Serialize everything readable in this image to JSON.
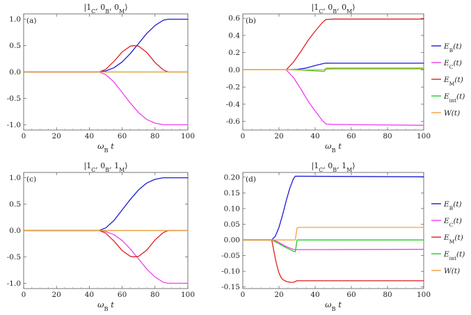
{
  "figure": {
    "description_labels": [
      "(a)",
      "(b)",
      "(c)",
      "(d)"
    ]
  },
  "colors": {
    "E_B": "#1a1ad6",
    "E_C": "#ee3ef0",
    "E_M": "#e02020",
    "E_int": "#22cc22",
    "W": "#f5a040"
  },
  "legend": {
    "entries": [
      {
        "key": "E_B",
        "label": "E_B(t)"
      },
      {
        "key": "E_C",
        "label": "E_C(t)"
      },
      {
        "key": "E_M",
        "label": "E_M(t)"
      },
      {
        "key": "E_int",
        "label": "E_int(t)"
      },
      {
        "key": "W",
        "label": "W(t)"
      }
    ]
  },
  "chart_data": [
    {
      "type": "line",
      "panel": "a",
      "tag": "(a)",
      "title": "|1_C, 0_B, 0_M⟩",
      "xlabel": "ω_B t",
      "ylabel": "",
      "xlim": [
        0,
        100
      ],
      "ylim": [
        -1.1,
        1.1
      ],
      "xticks": [
        0,
        20,
        40,
        60,
        80,
        100
      ],
      "yticks": [
        -1.0,
        -0.5,
        0.0,
        0.5,
        1.0
      ],
      "ytick_labels": [
        "-1.0",
        "-0.5",
        "0.0",
        "0.5",
        "1.0"
      ],
      "series": [
        {
          "name": "E_B(t)",
          "key": "E_B",
          "x": [
            0,
            46,
            50,
            55,
            60,
            65,
            70,
            75,
            80,
            85,
            88,
            90,
            100
          ],
          "y": [
            0,
            0,
            0.02,
            0.08,
            0.19,
            0.35,
            0.54,
            0.73,
            0.88,
            0.98,
            1.0,
            1.0,
            1.0
          ]
        },
        {
          "name": "E_C(t)",
          "key": "E_C",
          "x": [
            0,
            46,
            50,
            55,
            60,
            65,
            70,
            75,
            80,
            85,
            88,
            90,
            100
          ],
          "y": [
            0,
            0,
            -0.05,
            -0.19,
            -0.39,
            -0.59,
            -0.77,
            -0.9,
            -0.97,
            -1.0,
            -1.0,
            -1.0,
            -1.0
          ]
        },
        {
          "name": "E_M(t)",
          "key": "E_M",
          "x": [
            0,
            46,
            50,
            55,
            60,
            65,
            67,
            70,
            75,
            80,
            85,
            88,
            100
          ],
          "y": [
            0,
            0,
            0.05,
            0.2,
            0.38,
            0.49,
            0.5,
            0.49,
            0.37,
            0.18,
            0.04,
            0,
            0
          ]
        },
        {
          "name": "E_int(t)",
          "key": "E_int",
          "x": [
            0,
            100
          ],
          "y": [
            0,
            0
          ]
        },
        {
          "name": "W(t)",
          "key": "W",
          "x": [
            0,
            100
          ],
          "y": [
            0,
            0
          ]
        }
      ]
    },
    {
      "type": "line",
      "panel": "b",
      "tag": "(b)",
      "title": "|1_C, 0_B, 0_M⟩",
      "xlabel": "ω_B t",
      "ylabel": "",
      "xlim": [
        0,
        100
      ],
      "ylim": [
        -0.7,
        0.65
      ],
      "xticks": [
        0,
        20,
        40,
        60,
        80,
        100
      ],
      "yticks": [
        -0.6,
        -0.4,
        -0.2,
        0.0,
        0.2,
        0.4,
        0.6
      ],
      "ytick_labels": [
        "-0.6",
        "-0.4",
        "-0.2",
        "0.0",
        "0.2",
        "0.4",
        "0.6"
      ],
      "series": [
        {
          "name": "E_B(t)",
          "key": "E_B",
          "x": [
            0,
            24,
            30,
            35,
            40,
            45,
            46,
            50,
            100
          ],
          "y": [
            0,
            0,
            0.005,
            0.02,
            0.05,
            0.075,
            0.078,
            0.077,
            0.077
          ]
        },
        {
          "name": "E_C(t)",
          "key": "E_C",
          "x": [
            0,
            24,
            28,
            32,
            36,
            40,
            44,
            46,
            50,
            100
          ],
          "y": [
            0,
            0,
            -0.09,
            -0.22,
            -0.36,
            -0.48,
            -0.59,
            -0.63,
            -0.635,
            -0.645
          ]
        },
        {
          "name": "E_M(t)",
          "key": "E_M",
          "x": [
            0,
            24,
            28,
            32,
            36,
            40,
            44,
            46,
            50,
            100
          ],
          "y": [
            0,
            0,
            0.09,
            0.21,
            0.34,
            0.45,
            0.55,
            0.585,
            0.59,
            0.59
          ]
        },
        {
          "name": "E_int(t)",
          "key": "E_int",
          "x": [
            0,
            24,
            30,
            35,
            40,
            45,
            46,
            50,
            100
          ],
          "y": [
            0,
            0,
            -0.002,
            -0.006,
            -0.012,
            -0.018,
            0.01,
            0.012,
            0.012
          ]
        },
        {
          "name": "W(t)",
          "key": "W",
          "x": [
            0,
            45,
            46,
            50,
            100
          ],
          "y": [
            0,
            0,
            0.02,
            0.022,
            0.022
          ]
        }
      ]
    },
    {
      "type": "line",
      "panel": "c",
      "tag": "(c)",
      "title": "|1_C, 0_B, 1_M⟩",
      "xlabel": "ω_B t",
      "ylabel": "",
      "xlim": [
        0,
        100
      ],
      "ylim": [
        -1.1,
        1.1
      ],
      "xticks": [
        0,
        20,
        40,
        60,
        80,
        100
      ],
      "yticks": [
        -1.0,
        -0.5,
        0.0,
        0.5,
        1.0
      ],
      "ytick_labels": [
        "-1.0",
        "-0.5",
        "0.0",
        "0.5",
        "1.0"
      ],
      "series": [
        {
          "name": "E_B(t)",
          "key": "E_B",
          "x": [
            0,
            46,
            50,
            55,
            60,
            65,
            70,
            75,
            80,
            85,
            88,
            90,
            100
          ],
          "y": [
            0,
            0,
            0.05,
            0.19,
            0.39,
            0.59,
            0.77,
            0.9,
            0.97,
            1.0,
            1.0,
            1.0,
            1.0
          ]
        },
        {
          "name": "E_C(t)",
          "key": "E_C",
          "x": [
            0,
            46,
            50,
            55,
            60,
            65,
            70,
            75,
            80,
            85,
            88,
            90,
            100
          ],
          "y": [
            0,
            0,
            -0.02,
            -0.08,
            -0.19,
            -0.35,
            -0.54,
            -0.73,
            -0.88,
            -0.98,
            -1.0,
            -1.0,
            -1.0
          ]
        },
        {
          "name": "E_M(t)",
          "key": "E_M",
          "x": [
            0,
            46,
            50,
            55,
            60,
            65,
            67,
            70,
            75,
            80,
            85,
            88,
            100
          ],
          "y": [
            0,
            0,
            -0.05,
            -0.2,
            -0.38,
            -0.49,
            -0.5,
            -0.49,
            -0.37,
            -0.18,
            -0.04,
            0,
            0
          ]
        },
        {
          "name": "E_int(t)",
          "key": "E_int",
          "x": [
            0,
            100
          ],
          "y": [
            0,
            0
          ]
        },
        {
          "name": "W(t)",
          "key": "W",
          "x": [
            0,
            100
          ],
          "y": [
            0,
            0
          ]
        }
      ]
    },
    {
      "type": "line",
      "panel": "d",
      "tag": "(d)",
      "title": "|1_C, 0_B, 1_M⟩",
      "xlabel": "ω_B t",
      "ylabel": "",
      "xlim": [
        0,
        100
      ],
      "ylim": [
        -0.155,
        0.215
      ],
      "xticks": [
        0,
        20,
        40,
        60,
        80,
        100
      ],
      "yticks": [
        -0.15,
        -0.1,
        -0.05,
        0.0,
        0.05,
        0.1,
        0.15,
        0.2
      ],
      "ytick_labels": [
        "-0.15",
        "-0.10",
        "-0.05",
        "0.00",
        "0.05",
        "0.10",
        "0.15",
        "0.20"
      ],
      "series": [
        {
          "name": "E_B(t)",
          "key": "E_B",
          "x": [
            0,
            16,
            18,
            20,
            22,
            24,
            26,
            28,
            29,
            30,
            100
          ],
          "y": [
            0,
            0,
            0.012,
            0.04,
            0.08,
            0.125,
            0.165,
            0.195,
            0.203,
            0.203,
            0.201
          ]
        },
        {
          "name": "E_C(t)",
          "key": "E_C",
          "x": [
            0,
            16,
            18,
            20,
            22,
            24,
            26,
            28,
            29,
            30,
            100
          ],
          "y": [
            0,
            0,
            -0.003,
            -0.008,
            -0.015,
            -0.021,
            -0.026,
            -0.03,
            -0.031,
            -0.031,
            -0.03
          ]
        },
        {
          "name": "E_M(t)",
          "key": "E_M",
          "x": [
            0,
            16,
            17,
            18,
            19,
            20,
            21,
            22,
            24,
            26,
            28,
            30,
            100
          ],
          "y": [
            0,
            0,
            -0.03,
            -0.06,
            -0.085,
            -0.105,
            -0.118,
            -0.126,
            -0.132,
            -0.135,
            -0.135,
            -0.13,
            -0.13
          ]
        },
        {
          "name": "E_int(t)",
          "key": "E_int",
          "x": [
            0,
            16,
            20,
            24,
            28,
            29,
            30,
            100
          ],
          "y": [
            0,
            0,
            -0.012,
            -0.025,
            -0.036,
            -0.038,
            0.0,
            0.0
          ]
        },
        {
          "name": "W(t)",
          "key": "W",
          "x": [
            0,
            29,
            30,
            31,
            100
          ],
          "y": [
            0,
            0,
            0.038,
            0.04,
            0.04
          ]
        }
      ]
    }
  ]
}
